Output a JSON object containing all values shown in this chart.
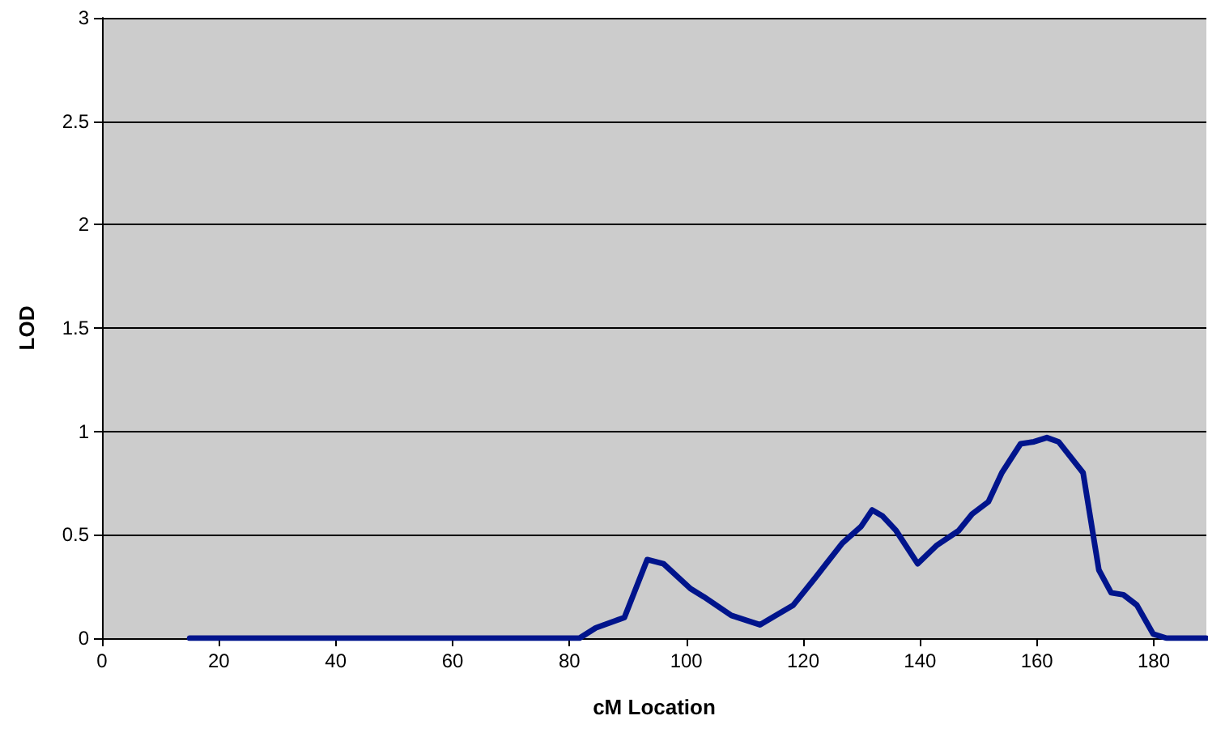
{
  "chart_data": {
    "type": "line",
    "xlabel": "cM Location",
    "ylabel": "LOD",
    "series": [
      {
        "color": "#00148c",
        "x": [
          15,
          30,
          52,
          60,
          81.7,
          84.5,
          89.4,
          93.3,
          96.1,
          100.7,
          103,
          107.7,
          112.6,
          118.3,
          122,
          126.7,
          129.9,
          131.8,
          133.6,
          135.9,
          139.6,
          142.9,
          146.6,
          148.9,
          151.7,
          154,
          157.2,
          159.5,
          161.7,
          163.7,
          167.9,
          170.6,
          172.7,
          174.8,
          177.1,
          179.9,
          182.2,
          189
        ],
        "values": [
          0,
          0,
          0,
          0,
          0,
          0.05,
          0.1,
          0.38,
          0.36,
          0.24,
          0.2,
          0.11,
          0.065,
          0.16,
          0.29,
          0.46,
          0.54,
          0.62,
          0.59,
          0.52,
          0.36,
          0.45,
          0.52,
          0.6,
          0.66,
          0.8,
          0.94,
          0.95,
          0.97,
          0.95,
          0.8,
          0.33,
          0.22,
          0.21,
          0.16,
          0.02,
          0,
          0
        ]
      }
    ],
    "xlim": [
      0,
      189
    ],
    "xticks": [
      0,
      20,
      40,
      60,
      80,
      100,
      120,
      140,
      160,
      180
    ],
    "ylim": [
      0,
      3
    ],
    "yticks": [
      0,
      0.5,
      1,
      1.5,
      2,
      2.5,
      3
    ],
    "grid": "y",
    "marker": "none",
    "line_style": "solid"
  }
}
